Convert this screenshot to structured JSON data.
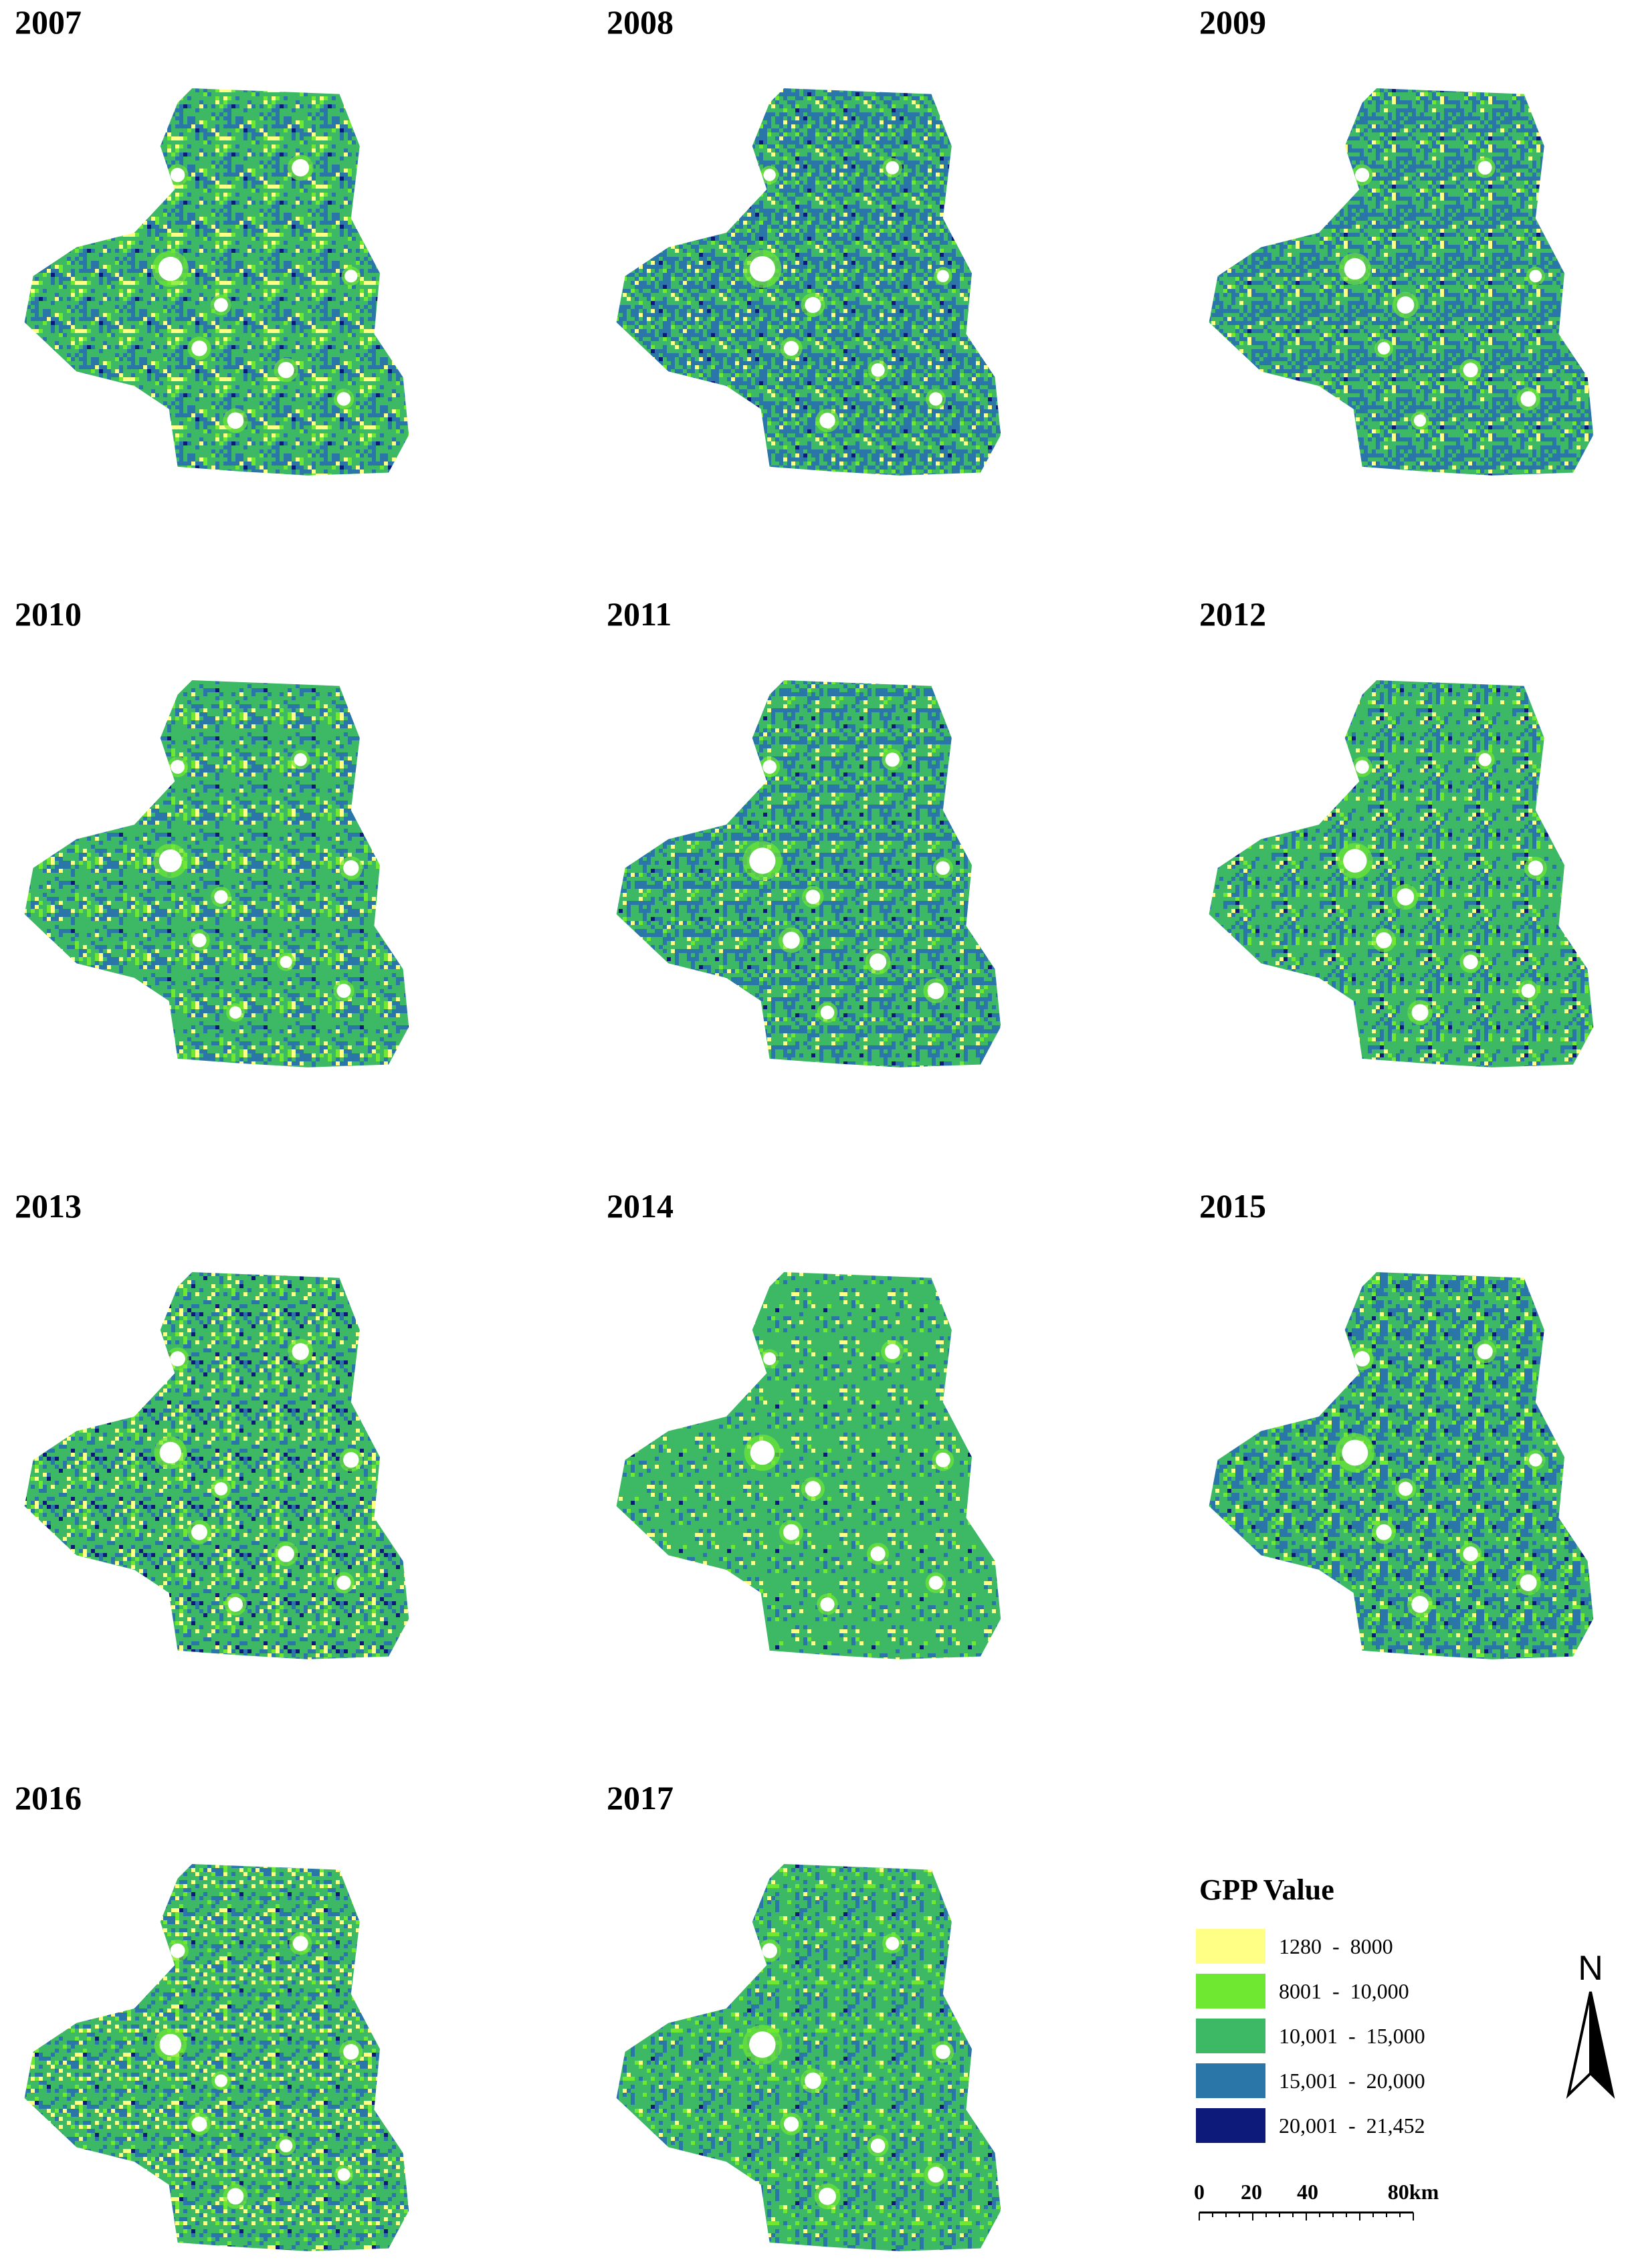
{
  "panels": [
    {
      "year": "2007"
    },
    {
      "year": "2008"
    },
    {
      "year": "2009"
    },
    {
      "year": "2010"
    },
    {
      "year": "2011"
    },
    {
      "year": "2012"
    },
    {
      "year": "2013"
    },
    {
      "year": "2014"
    },
    {
      "year": "2015"
    },
    {
      "year": "2016"
    },
    {
      "year": "2017"
    }
  ],
  "legend": {
    "title": "GPP Value",
    "items": [
      {
        "label": "1280  -  8000",
        "color": "#ffff85"
      },
      {
        "label": "8001  -  10,000",
        "color": "#6fe832"
      },
      {
        "label": "10,001  -  15,000",
        "color": "#3db865"
      },
      {
        "label": "15,001  -  20,000",
        "color": "#2a76a8"
      },
      {
        "label": "20,001  -  21,452",
        "color": "#0d1a7a"
      }
    ]
  },
  "north_arrow": "N",
  "scale_bar": [
    "0",
    "20",
    "40",
    "80km"
  ]
}
